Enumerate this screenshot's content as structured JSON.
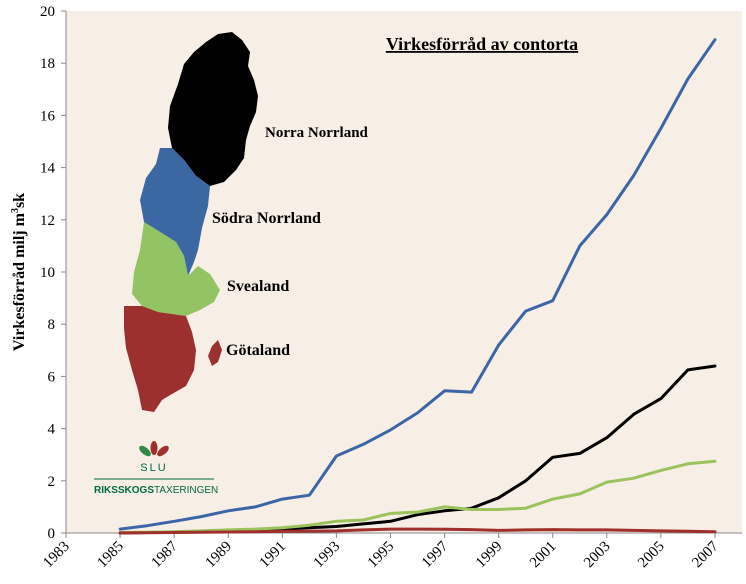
{
  "chart_data": {
    "type": "line",
    "title": "Virkesförråd av contorta",
    "ylabel_main": "Virkesförråd milj m",
    "ylabel_sup": "3",
    "ylabel_tail": "sk",
    "xlabel": "",
    "xlim": [
      1983,
      2008
    ],
    "ylim": [
      0,
      20
    ],
    "x_ticks": [
      "1983",
      "1985",
      "1987",
      "1989",
      "1991",
      "1993",
      "1995",
      "1997",
      "1999",
      "2001",
      "2003",
      "2005",
      "2007"
    ],
    "y_ticks": [
      "0",
      "2",
      "4",
      "6",
      "8",
      "10",
      "12",
      "14",
      "16",
      "18",
      "20"
    ],
    "grid": false,
    "background": "#f7eee5",
    "series": [
      {
        "color": "#3a66a8",
        "x": [
          1985,
          1986,
          1987,
          1988,
          1989,
          1990,
          1991,
          1992,
          1993,
          1994,
          1995,
          1996,
          1997,
          1998,
          1999,
          2000,
          2001,
          2002,
          2003,
          2004,
          2005,
          2006,
          2007
        ],
        "y": [
          0.15,
          0.28,
          0.45,
          0.63,
          0.85,
          1.0,
          1.3,
          1.45,
          2.95,
          3.4,
          3.95,
          4.6,
          5.45,
          5.4,
          7.2,
          8.5,
          8.9,
          11.0,
          12.2,
          13.7,
          15.5,
          17.4,
          18.9
        ]
      },
      {
        "color": "#000000",
        "x": [
          1985,
          1986,
          1987,
          1988,
          1989,
          1990,
          1991,
          1992,
          1993,
          1994,
          1995,
          1996,
          1997,
          1998,
          1999,
          2000,
          2001,
          2002,
          2003,
          2004,
          2005,
          2006,
          2007
        ],
        "y": [
          0.0,
          0.02,
          0.04,
          0.07,
          0.1,
          0.13,
          0.15,
          0.2,
          0.25,
          0.35,
          0.45,
          0.7,
          0.85,
          0.95,
          1.35,
          2.0,
          2.9,
          3.05,
          3.65,
          4.55,
          5.15,
          6.25,
          6.4
        ]
      },
      {
        "color": "#9ac35b",
        "x": [
          1985,
          1986,
          1987,
          1988,
          1989,
          1990,
          1991,
          1992,
          1993,
          1994,
          1995,
          1996,
          1997,
          1998,
          1999,
          2000,
          2001,
          2002,
          2003,
          2004,
          2005,
          2006,
          2007
        ],
        "y": [
          0.02,
          0.03,
          0.05,
          0.08,
          0.12,
          0.15,
          0.2,
          0.3,
          0.45,
          0.5,
          0.75,
          0.8,
          1.0,
          0.9,
          0.9,
          0.95,
          1.3,
          1.5,
          1.95,
          2.1,
          2.4,
          2.65,
          2.75
        ]
      },
      {
        "color": "#a0302c",
        "x": [
          1985,
          1986,
          1987,
          1988,
          1989,
          1990,
          1991,
          1992,
          1993,
          1994,
          1995,
          1996,
          1997,
          1998,
          1999,
          2000,
          2001,
          2002,
          2003,
          2004,
          2005,
          2006,
          2007
        ],
        "y": [
          0.0,
          0.01,
          0.02,
          0.03,
          0.04,
          0.05,
          0.06,
          0.07,
          0.08,
          0.12,
          0.15,
          0.15,
          0.14,
          0.13,
          0.1,
          0.12,
          0.13,
          0.12,
          0.12,
          0.1,
          0.08,
          0.07,
          0.05
        ]
      }
    ],
    "map": {
      "regions": [
        {
          "name": "Norra Norrland",
          "color": "#000000"
        },
        {
          "name": "Södra Norrland",
          "color": "#3b67a3"
        },
        {
          "name": "Svealand",
          "color": "#92c463"
        },
        {
          "name": "Götaland",
          "color": "#9c302e"
        }
      ]
    },
    "logo": {
      "abbr": "SLU",
      "name_bold": "RIKSSKOGS",
      "name_rest": "TAXERINGEN"
    }
  }
}
